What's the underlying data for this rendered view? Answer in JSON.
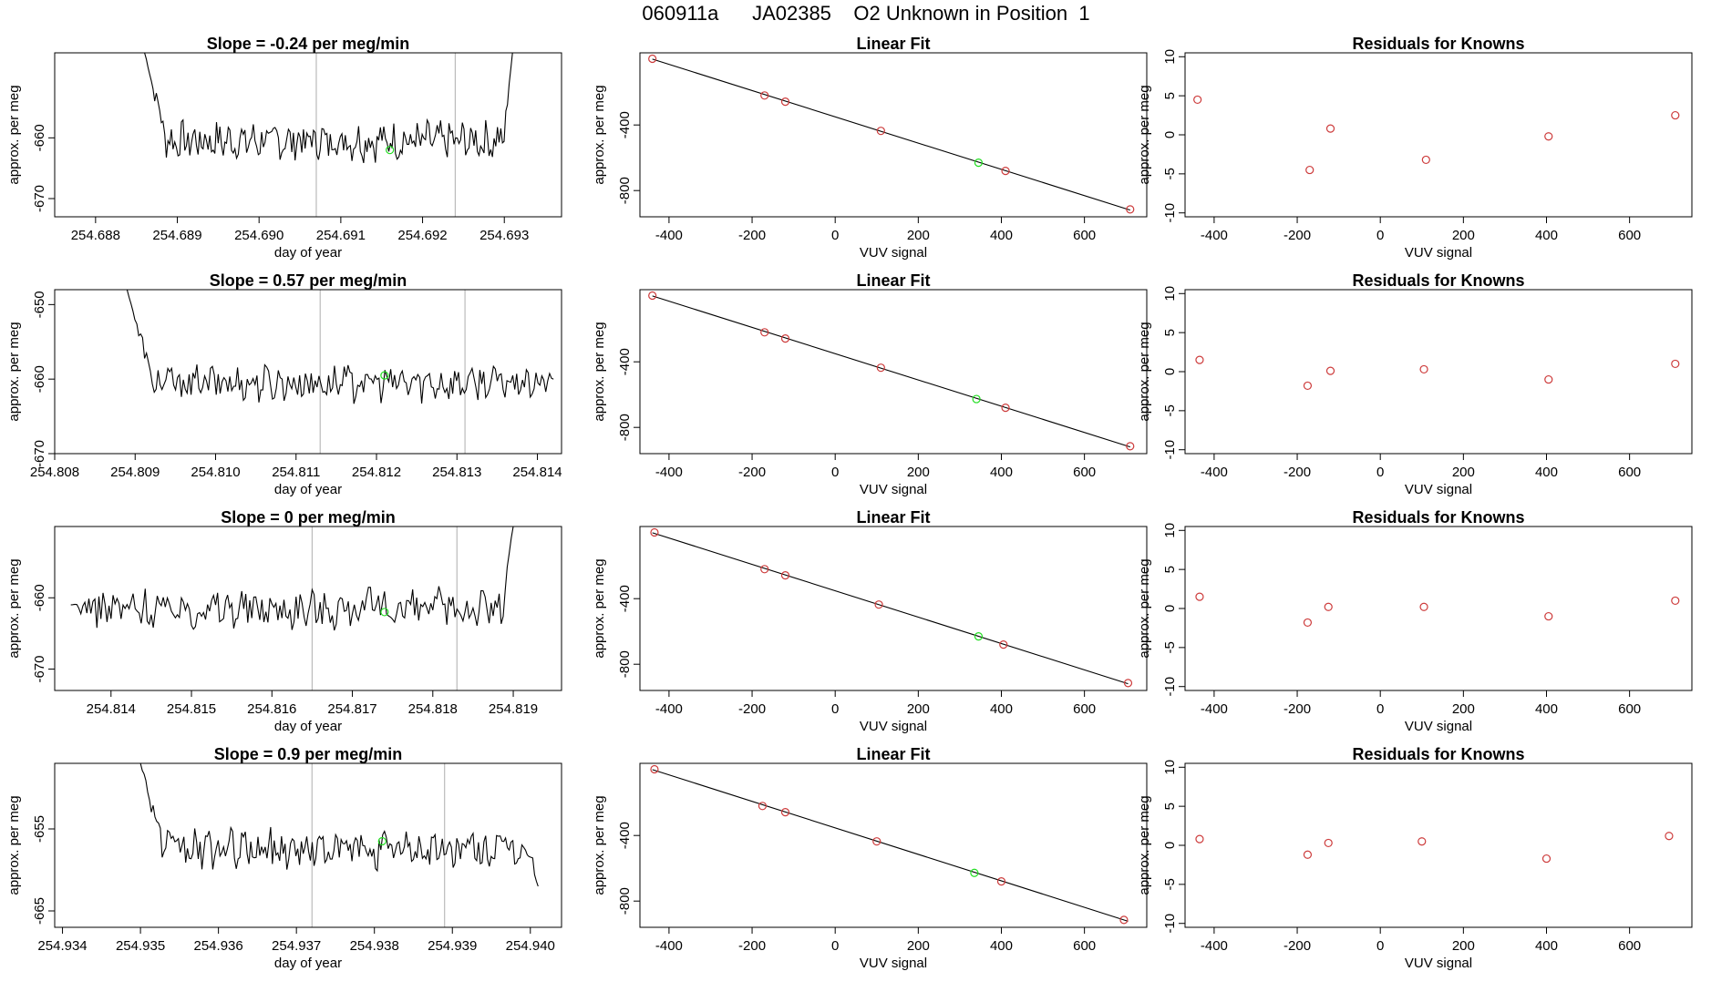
{
  "page_title": "060911a      JA02385    O2 Unknown in Position  1",
  "colors": {
    "trace": "#000000",
    "known_point": "#cd3b3b",
    "unknown_point": "#22dd22",
    "marker_line": "#bbbbbb",
    "fit_line": "#000000"
  },
  "chart_data": [
    {
      "type": "line",
      "panel": "timeseries-1",
      "title": "Slope =  -0.24  per meg/min",
      "xlabel": "day of year",
      "ylabel": "approx. per meg",
      "xlim": [
        254.6875,
        254.6937
      ],
      "ylim": [
        -673,
        -646
      ],
      "xticks": [
        254.688,
        254.689,
        254.69,
        254.691,
        254.692,
        254.693
      ],
      "xtick_labels": [
        "254.688",
        "254.689",
        "254.690",
        "254.691",
        "254.692",
        "254.693"
      ],
      "yticks": [
        -660,
        -670
      ],
      "ytick_labels": [
        "-660",
        "-670"
      ],
      "trace_start": 254.6886,
      "trace_end": 254.6931,
      "trace_baseline": -660.5,
      "trace_noise": 2.6,
      "trace_initial": -646,
      "trace_end_value": -646,
      "marker_lines": [
        254.6907,
        254.6924
      ],
      "unknown_point": {
        "x": 254.6916,
        "y": -662
      }
    },
    {
      "type": "line",
      "panel": "timeseries-2",
      "title": "Slope =  0.57  per meg/min",
      "xlabel": "day of year",
      "ylabel": "approx. per meg",
      "xlim": [
        254.808,
        254.8143
      ],
      "ylim": [
        -670,
        -648
      ],
      "xticks": [
        254.808,
        254.809,
        254.81,
        254.811,
        254.812,
        254.813,
        254.814
      ],
      "xtick_labels": [
        "254.808",
        "254.809",
        "254.810",
        "254.811",
        "254.812",
        "254.813",
        "254.814"
      ],
      "yticks": [
        -650,
        -660,
        -670
      ],
      "ytick_labels": [
        "-650",
        "-660",
        "-670"
      ],
      "trace_start": 254.8089,
      "trace_end": 254.8142,
      "trace_baseline": -660.5,
      "trace_noise": 2.0,
      "trace_initial": -648,
      "trace_end_value": -660,
      "marker_lines": [
        254.8113,
        254.8131
      ],
      "unknown_point": {
        "x": 254.8121,
        "y": -659.5
      }
    },
    {
      "type": "line",
      "panel": "timeseries-3",
      "title": "Slope =  0  per meg/min",
      "xlabel": "day of year",
      "ylabel": "approx. per meg",
      "xlim": [
        254.8133,
        254.8196
      ],
      "ylim": [
        -673,
        -650
      ],
      "xticks": [
        254.814,
        254.815,
        254.816,
        254.817,
        254.818,
        254.819
      ],
      "xtick_labels": [
        "254.814",
        "254.815",
        "254.816",
        "254.817",
        "254.818",
        "254.819"
      ],
      "yticks": [
        -660,
        -670
      ],
      "ytick_labels": [
        "-660",
        "-670"
      ],
      "trace_start": 254.8135,
      "trace_end": 254.819,
      "trace_baseline": -661.5,
      "trace_noise": 2.3,
      "trace_initial": -661,
      "trace_end_value": -650,
      "marker_lines": [
        254.8165,
        254.8183
      ],
      "unknown_point": {
        "x": 254.8174,
        "y": -662
      }
    },
    {
      "type": "line",
      "panel": "timeseries-4",
      "title": "Slope =  0.9  per meg/min",
      "xlabel": "day of year",
      "ylabel": "approx. per meg",
      "xlim": [
        254.9339,
        254.9404
      ],
      "ylim": [
        -667,
        -647
      ],
      "xticks": [
        254.934,
        254.935,
        254.936,
        254.937,
        254.938,
        254.939,
        254.94
      ],
      "xtick_labels": [
        "254.934",
        "254.935",
        "254.936",
        "254.937",
        "254.938",
        "254.939",
        "254.940"
      ],
      "yticks": [
        -655,
        -665
      ],
      "ytick_labels": [
        "-655",
        "-665"
      ],
      "trace_start": 254.935,
      "trace_end": 254.9401,
      "trace_baseline": -657.5,
      "trace_noise": 2.0,
      "trace_initial": -647,
      "trace_end_value": -662,
      "marker_lines": [
        254.9372,
        254.9389
      ],
      "unknown_point": {
        "x": 254.9381,
        "y": -656.5
      }
    },
    {
      "type": "scatter",
      "panel": "linear-fit-1",
      "title": "Linear Fit",
      "xlabel": "VUV signal",
      "ylabel": "approx. per meg",
      "xlim": [
        -470,
        750
      ],
      "ylim": [
        -960,
        40
      ],
      "xticks": [
        -400,
        -200,
        0,
        200,
        400,
        600
      ],
      "xtick_labels": [
        "-400",
        "-200",
        "0",
        "200",
        "400",
        "600"
      ],
      "yticks": [
        -400,
        -800
      ],
      "ytick_labels": [
        "-400",
        "-800"
      ],
      "fit_line": {
        "x": [
          -440,
          710
        ],
        "y": [
          2,
          -919
        ]
      },
      "known_points": {
        "x": [
          -440,
          -170,
          -120,
          110,
          410,
          710
        ],
        "y": [
          4,
          -220,
          -258,
          -436,
          -680,
          -915
        ]
      },
      "unknown_point": {
        "x": 345,
        "y": -630
      }
    },
    {
      "type": "scatter",
      "panel": "linear-fit-2",
      "title": "Linear Fit",
      "xlabel": "VUV signal",
      "ylabel": "approx. per meg",
      "xlim": [
        -470,
        750
      ],
      "ylim": [
        -960,
        40
      ],
      "xticks": [
        -400,
        -200,
        0,
        200,
        400,
        600
      ],
      "xtick_labels": [
        "-400",
        "-200",
        "0",
        "200",
        "400",
        "600"
      ],
      "yticks": [
        -400,
        -800
      ],
      "ytick_labels": [
        "-400",
        "-800"
      ],
      "fit_line": {
        "x": [
          -440,
          710
        ],
        "y": [
          2,
          -919
        ]
      },
      "known_points": {
        "x": [
          -440,
          -170,
          -120,
          110,
          410,
          710
        ],
        "y": [
          4,
          -220,
          -258,
          -436,
          -680,
          -915
        ]
      },
      "unknown_point": {
        "x": 340,
        "y": -627
      }
    },
    {
      "type": "scatter",
      "panel": "linear-fit-3",
      "title": "Linear Fit",
      "xlabel": "VUV signal",
      "ylabel": "approx. per meg",
      "xlim": [
        -470,
        750
      ],
      "ylim": [
        -960,
        40
      ],
      "xticks": [
        -400,
        -200,
        0,
        200,
        400,
        600
      ],
      "xtick_labels": [
        "-400",
        "-200",
        "0",
        "200",
        "400",
        "600"
      ],
      "yticks": [
        -400,
        -800
      ],
      "ytick_labels": [
        "-400",
        "-800"
      ],
      "fit_line": {
        "x": [
          -440,
          705
        ],
        "y": [
          2,
          -919
        ]
      },
      "known_points": {
        "x": [
          -435,
          -170,
          -120,
          105,
          405,
          705
        ],
        "y": [
          4,
          -220,
          -258,
          -436,
          -680,
          -915
        ]
      },
      "unknown_point": {
        "x": 345,
        "y": -630
      }
    },
    {
      "type": "scatter",
      "panel": "linear-fit-4",
      "title": "Linear Fit",
      "xlabel": "VUV signal",
      "ylabel": "approx. per meg",
      "xlim": [
        -470,
        750
      ],
      "ylim": [
        -960,
        40
      ],
      "xticks": [
        -400,
        -200,
        0,
        200,
        400,
        600
      ],
      "xtick_labels": [
        "-400",
        "-200",
        "0",
        "200",
        "400",
        "600"
      ],
      "yticks": [
        -400,
        -800
      ],
      "ytick_labels": [
        "-400",
        "-800"
      ],
      "fit_line": {
        "x": [
          -440,
          705
        ],
        "y": [
          2,
          -923
        ]
      },
      "known_points": {
        "x": [
          -435,
          -175,
          -120,
          100,
          400,
          695
        ],
        "y": [
          4,
          -220,
          -258,
          -436,
          -680,
          -915
        ]
      },
      "unknown_point": {
        "x": 335,
        "y": -628
      }
    },
    {
      "type": "scatter",
      "panel": "residuals-1",
      "title": "Residuals for Knowns",
      "xlabel": "VUV signal",
      "ylabel": "approx. per meg",
      "xlim": [
        -470,
        750
      ],
      "ylim": [
        -10.5,
        10.5
      ],
      "xticks": [
        -400,
        -200,
        0,
        200,
        400,
        600
      ],
      "xtick_labels": [
        "-400",
        "-200",
        "0",
        "200",
        "400",
        "600"
      ],
      "yticks": [
        10,
        5,
        0,
        -5,
        -10
      ],
      "ytick_labels": [
        "10",
        "5",
        "0",
        "-5",
        "-10"
      ],
      "points": {
        "x": [
          -440,
          -170,
          -120,
          110,
          405,
          710
        ],
        "y": [
          4.5,
          -4.5,
          0.8,
          -3.2,
          -0.2,
          2.5
        ]
      }
    },
    {
      "type": "scatter",
      "panel": "residuals-2",
      "title": "Residuals for Knowns",
      "xlabel": "VUV signal",
      "ylabel": "approx. per meg",
      "xlim": [
        -470,
        750
      ],
      "ylim": [
        -10.5,
        10.5
      ],
      "xticks": [
        -400,
        -200,
        0,
        200,
        400,
        600
      ],
      "xtick_labels": [
        "-400",
        "-200",
        "0",
        "200",
        "400",
        "600"
      ],
      "yticks": [
        10,
        5,
        0,
        -5,
        -10
      ],
      "ytick_labels": [
        "10",
        "5",
        "0",
        "-5",
        "-10"
      ],
      "points": {
        "x": [
          -435,
          -175,
          -120,
          105,
          405,
          710
        ],
        "y": [
          1.5,
          -1.8,
          0.1,
          0.3,
          -1.0,
          1.0
        ]
      }
    },
    {
      "type": "scatter",
      "panel": "residuals-3",
      "title": "Residuals for Knowns",
      "xlabel": "VUV signal",
      "ylabel": "approx. per meg",
      "xlim": [
        -470,
        750
      ],
      "ylim": [
        -10.5,
        10.5
      ],
      "xticks": [
        -400,
        -200,
        0,
        200,
        400,
        600
      ],
      "xtick_labels": [
        "-400",
        "-200",
        "0",
        "200",
        "400",
        "600"
      ],
      "yticks": [
        10,
        5,
        0,
        -5,
        -10
      ],
      "ytick_labels": [
        "10",
        "5",
        "0",
        "-5",
        "-10"
      ],
      "points": {
        "x": [
          -435,
          -175,
          -125,
          105,
          405,
          710
        ],
        "y": [
          1.5,
          -1.8,
          0.2,
          0.2,
          -1.0,
          1.0
        ]
      }
    },
    {
      "type": "scatter",
      "panel": "residuals-4",
      "title": "Residuals for Knowns",
      "xlabel": "VUV signal",
      "ylabel": "approx. per meg",
      "xlim": [
        -470,
        750
      ],
      "ylim": [
        -10.5,
        10.5
      ],
      "xticks": [
        -400,
        -200,
        0,
        200,
        400,
        600
      ],
      "xtick_labels": [
        "-400",
        "-200",
        "0",
        "200",
        "400",
        "600"
      ],
      "yticks": [
        10,
        5,
        0,
        -5,
        -10
      ],
      "ytick_labels": [
        "10",
        "5",
        "0",
        "-5",
        "-10"
      ],
      "points": {
        "x": [
          -435,
          -175,
          -125,
          100,
          400,
          695
        ],
        "y": [
          0.8,
          -1.2,
          0.3,
          0.5,
          -1.7,
          1.2
        ]
      }
    }
  ]
}
